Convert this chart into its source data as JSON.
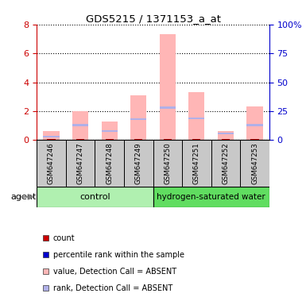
{
  "title": "GDS5215 / 1371153_a_at",
  "samples": [
    "GSM647246",
    "GSM647247",
    "GSM647248",
    "GSM647249",
    "GSM647250",
    "GSM647251",
    "GSM647252",
    "GSM647253"
  ],
  "group_labels": [
    "control",
    "hydrogen-saturated water"
  ],
  "value_absent": [
    0.6,
    2.0,
    1.3,
    3.1,
    7.3,
    3.3,
    0.65,
    2.3
  ],
  "rank_absent_pct": [
    3.0,
    13.0,
    8.0,
    18.0,
    28.0,
    19.0,
    5.5,
    13.0
  ],
  "ylim_left": [
    0,
    8
  ],
  "ylim_right": [
    0,
    100
  ],
  "yticks_left": [
    0,
    2,
    4,
    6,
    8
  ],
  "yticks_right": [
    0,
    25,
    50,
    75,
    100
  ],
  "yticklabels_right": [
    "0",
    "25",
    "50",
    "75",
    "100%"
  ],
  "left_axis_color": "#cc0000",
  "right_axis_color": "#0000cc",
  "color_count": "#cc0000",
  "color_rank_present": "#0000cc",
  "color_value_absent": "#ffb6b6",
  "color_rank_absent": "#b0b0e8",
  "bar_width": 0.55,
  "plot_bg": "white",
  "control_color": "#b0f0b0",
  "hsw_color": "#60dd60",
  "sample_box_color": "#c8c8c8",
  "agent_label": "agent"
}
